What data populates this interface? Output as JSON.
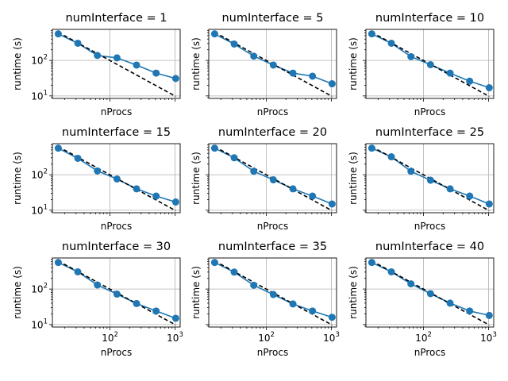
{
  "figure": {
    "grid": true,
    "colors": {
      "measured_line": "#1f77b4",
      "ideal_line": "#000000",
      "grid": "#b0b0b0",
      "axes": "#000000"
    }
  },
  "chart_data": [
    {
      "type": "line",
      "title": "numInterface = 1",
      "xlabel": "nProcs",
      "ylabel": "runtime (s)",
      "xscale": "log",
      "yscale": "log",
      "xlim": [
        13,
        1200
      ],
      "ylim": [
        8.5,
        750
      ],
      "x": [
        16,
        32,
        64,
        128,
        256,
        512,
        1024
      ],
      "y": [
        560,
        305,
        138,
        118,
        74,
        44,
        31
      ],
      "ideal": {
        "x": [
          16,
          1024
        ],
        "y": [
          620,
          9.7
        ]
      },
      "x_tick_labels_visible": false,
      "yticks": [
        {
          "base": "10",
          "exp": "1"
        },
        {
          "base": "10",
          "exp": "2"
        }
      ],
      "y_tick_labels_visible": true
    },
    {
      "type": "line",
      "title": "numInterface = 5",
      "xlabel": "nProcs",
      "ylabel": "runtime (s)",
      "xscale": "log",
      "yscale": "log",
      "xlim": [
        13,
        1200
      ],
      "ylim": [
        8.5,
        750
      ],
      "x": [
        16,
        32,
        64,
        128,
        256,
        512,
        1024
      ],
      "y": [
        560,
        290,
        132,
        74,
        44,
        36,
        22
      ],
      "ideal": {
        "x": [
          16,
          1024
        ],
        "y": [
          620,
          9.7
        ]
      },
      "x_tick_labels_visible": false,
      "yticks": [
        {
          "base": "10",
          "exp": "1"
        },
        {
          "base": "10",
          "exp": "2"
        }
      ],
      "y_tick_labels_visible": false
    },
    {
      "type": "line",
      "title": "numInterface = 10",
      "xlabel": "nProcs",
      "ylabel": "runtime (s)",
      "xscale": "log",
      "yscale": "log",
      "xlim": [
        13,
        1200
      ],
      "ylim": [
        8.5,
        750
      ],
      "x": [
        16,
        32,
        64,
        128,
        256,
        512,
        1024
      ],
      "y": [
        560,
        305,
        128,
        76,
        44,
        26,
        17
      ],
      "ideal": {
        "x": [
          16,
          1024
        ],
        "y": [
          620,
          9.7
        ]
      },
      "x_tick_labels_visible": false,
      "yticks": [
        {
          "base": "10",
          "exp": "1"
        },
        {
          "base": "10",
          "exp": "2"
        }
      ],
      "y_tick_labels_visible": false
    },
    {
      "type": "line",
      "title": "numInterface = 15",
      "xlabel": "nProcs",
      "ylabel": "runtime (s)",
      "xscale": "log",
      "yscale": "log",
      "xlim": [
        13,
        1200
      ],
      "ylim": [
        8.5,
        750
      ],
      "x": [
        16,
        32,
        64,
        128,
        256,
        512,
        1024
      ],
      "y": [
        560,
        290,
        128,
        76,
        40,
        25,
        17
      ],
      "ideal": {
        "x": [
          16,
          1024
        ],
        "y": [
          620,
          9.7
        ]
      },
      "x_tick_labels_visible": false,
      "yticks": [
        {
          "base": "10",
          "exp": "1"
        },
        {
          "base": "10",
          "exp": "2"
        }
      ],
      "y_tick_labels_visible": true
    },
    {
      "type": "line",
      "title": "numInterface = 20",
      "xlabel": "nProcs",
      "ylabel": "runtime (s)",
      "xscale": "log",
      "yscale": "log",
      "xlim": [
        13,
        1200
      ],
      "ylim": [
        8.5,
        750
      ],
      "x": [
        16,
        32,
        64,
        128,
        256,
        512,
        1024
      ],
      "y": [
        560,
        300,
        125,
        72,
        40,
        25,
        15
      ],
      "ideal": {
        "x": [
          16,
          1024
        ],
        "y": [
          620,
          9.7
        ]
      },
      "x_tick_labels_visible": false,
      "yticks": [
        {
          "base": "10",
          "exp": "1"
        },
        {
          "base": "10",
          "exp": "2"
        }
      ],
      "y_tick_labels_visible": false
    },
    {
      "type": "line",
      "title": "numInterface = 25",
      "xlabel": "nProcs",
      "ylabel": "runtime (s)",
      "xscale": "log",
      "yscale": "log",
      "xlim": [
        13,
        1200
      ],
      "ylim": [
        8.5,
        750
      ],
      "x": [
        16,
        32,
        64,
        128,
        256,
        512,
        1024
      ],
      "y": [
        560,
        320,
        125,
        70,
        40,
        25,
        15
      ],
      "ideal": {
        "x": [
          16,
          1024
        ],
        "y": [
          620,
          9.7
        ]
      },
      "x_tick_labels_visible": false,
      "yticks": [
        {
          "base": "10",
          "exp": "1"
        },
        {
          "base": "10",
          "exp": "2"
        }
      ],
      "y_tick_labels_visible": false
    },
    {
      "type": "line",
      "title": "numInterface = 30",
      "xlabel": "nProcs",
      "ylabel": "runtime (s)",
      "xscale": "log",
      "yscale": "log",
      "xlim": [
        13,
        1200
      ],
      "ylim": [
        8.5,
        750
      ],
      "x": [
        16,
        32,
        64,
        128,
        256,
        512,
        1024
      ],
      "y": [
        560,
        305,
        130,
        72,
        39,
        24,
        15
      ],
      "ideal": {
        "x": [
          16,
          1024
        ],
        "y": [
          620,
          9.7
        ]
      },
      "x_tick_labels_visible": true,
      "xticks": [
        {
          "base": "10",
          "exp": "2"
        },
        {
          "base": "10",
          "exp": "3"
        }
      ],
      "yticks": [
        {
          "base": "10",
          "exp": "1"
        },
        {
          "base": "10",
          "exp": "2"
        }
      ],
      "y_tick_labels_visible": true
    },
    {
      "type": "line",
      "title": "numInterface = 35",
      "xlabel": "nProcs",
      "ylabel": "runtime (s)",
      "xscale": "log",
      "yscale": "log",
      "xlim": [
        13,
        1200
      ],
      "ylim": [
        8.5,
        750
      ],
      "x": [
        16,
        32,
        64,
        128,
        256,
        512,
        1024
      ],
      "y": [
        560,
        300,
        128,
        70,
        38,
        24,
        16
      ],
      "ideal": {
        "x": [
          16,
          1024
        ],
        "y": [
          620,
          9.7
        ]
      },
      "x_tick_labels_visible": true,
      "xticks": [
        {
          "base": "10",
          "exp": "2"
        },
        {
          "base": "10",
          "exp": "3"
        }
      ],
      "yticks": [
        {
          "base": "10",
          "exp": "1"
        },
        {
          "base": "10",
          "exp": "2"
        }
      ],
      "y_tick_labels_visible": false
    },
    {
      "type": "line",
      "title": "numInterface = 40",
      "xlabel": "nProcs",
      "ylabel": "runtime (s)",
      "xscale": "log",
      "yscale": "log",
      "xlim": [
        13,
        1200
      ],
      "ylim": [
        8.5,
        750
      ],
      "x": [
        16,
        32,
        64,
        128,
        256,
        512,
        1024
      ],
      "y": [
        560,
        305,
        140,
        74,
        40,
        24,
        18
      ],
      "ideal": {
        "x": [
          16,
          1024
        ],
        "y": [
          620,
          9.7
        ]
      },
      "x_tick_labels_visible": true,
      "xticks": [
        {
          "base": "10",
          "exp": "2"
        },
        {
          "base": "10",
          "exp": "3"
        }
      ],
      "yticks": [
        {
          "base": "10",
          "exp": "1"
        },
        {
          "base": "10",
          "exp": "2"
        }
      ],
      "y_tick_labels_visible": false
    }
  ]
}
